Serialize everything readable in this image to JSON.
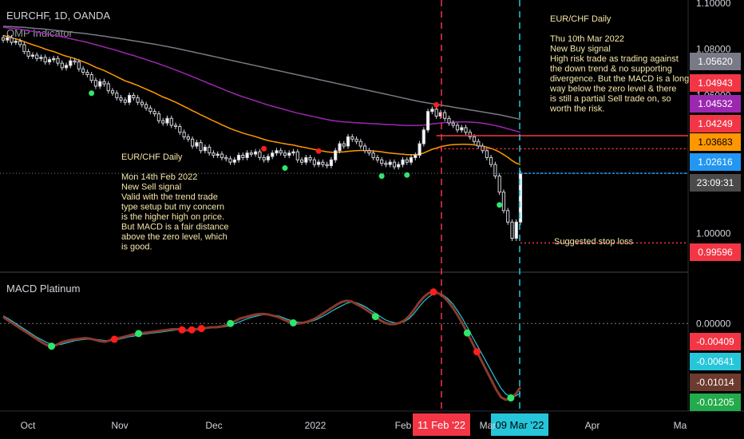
{
  "chart_data": {
    "type": "line",
    "title": "EURCHF, 1D, OANDA",
    "indicator_label": "OMP Indicator",
    "price_axis": {
      "ylim": [
        0.985,
        1.1
      ],
      "ticks": [
        "1.10000",
        "1.08000",
        "1.06000",
        "1.04000",
        "1.02000",
        "1.00000"
      ],
      "tick_values": [
        1.1,
        1.08,
        1.06,
        1.04,
        1.02,
        1.0
      ]
    },
    "time_axis": {
      "labels": [
        "Oct",
        "Nov",
        "Dec",
        "2022",
        "Feb",
        "Mar",
        "Apr",
        "Ma"
      ]
    },
    "price_tags": [
      {
        "value": "1.05620",
        "color": "#787b86"
      },
      {
        "value": "1.04943",
        "color": "#f23645"
      },
      {
        "value": "1.04532",
        "color": "#9c27b0"
      },
      {
        "value": "1.04249",
        "color": "#f23645"
      },
      {
        "value": "1.03683",
        "color": "#ff9800"
      },
      {
        "value": "1.02616",
        "color": "#2196f3"
      },
      {
        "value": "23:09:31",
        "color": "#4a4a4a"
      },
      {
        "value": "0.99596",
        "color": "#f23645"
      }
    ],
    "macd": {
      "label": "MACD Platinum",
      "ylim": [
        -0.0135,
        0.0075
      ],
      "zero_tick": "0.00000",
      "tags": [
        {
          "value": "-0.00409",
          "color": "#f23645"
        },
        {
          "value": "-0.00641",
          "color": "#26c6da"
        },
        {
          "value": "-0.01014",
          "color": "#6d3a2f"
        },
        {
          "value": "-0.01205",
          "color": "#22ab4a"
        }
      ]
    },
    "vertical_markers": [
      {
        "label": "11 Feb '22",
        "color": "#f23645"
      },
      {
        "label": "09 Mar '22",
        "color": "#26c6da"
      }
    ],
    "annotations": {
      "sell_note": [
        "EUR/CHF Daily",
        "",
        "Mon 14th Feb 2022",
        "New Sell signal",
        "Valid with the trend trade",
        "type setup but my concern",
        "is the higher high on price.",
        "But MACD is a fair distance",
        "above the zero level, which",
        "is good."
      ],
      "buy_note": [
        "EUR/CHF Daily",
        "",
        "Thu 10th Mar 2022",
        "New Buy signal",
        "High risk trade as trading against",
        "the down trend & no supporting",
        "divergence.  But the MACD is a long",
        "way below the zero level & there",
        "is still a partial Sell trade on, so",
        "worth the risk."
      ],
      "stop_loss": "Suggested stop loss"
    },
    "levels": {
      "entry": 1.04249,
      "target": 1.03683,
      "current": 1.02616,
      "stop": 0.99596
    },
    "closes": [
      1.084,
      1.085,
      1.083,
      1.0835,
      1.082,
      1.079,
      1.077,
      1.0775,
      1.076,
      1.0765,
      1.0745,
      1.0755,
      1.076,
      1.074,
      1.072,
      1.073,
      1.075,
      1.0745,
      1.0715,
      1.07,
      1.069,
      1.0665,
      1.064,
      1.066,
      1.065,
      1.062,
      1.061,
      1.059,
      1.058,
      1.057,
      1.06,
      1.059,
      1.057,
      1.056,
      1.0545,
      1.053,
      1.052,
      1.049,
      1.048,
      1.05,
      1.047,
      1.0465,
      1.044,
      1.042,
      1.041,
      1.038,
      1.0395,
      1.036,
      1.0375,
      1.035,
      1.034,
      1.0345,
      1.033,
      1.0325,
      1.031,
      1.032,
      1.034,
      1.033,
      1.035,
      1.0345,
      1.0355,
      1.033,
      1.032,
      1.0335,
      1.035,
      1.036,
      1.035,
      1.034,
      1.035,
      1.0355,
      1.032,
      1.031,
      1.033,
      1.032,
      1.03,
      1.031,
      1.03,
      1.0295,
      1.032,
      1.036,
      1.039,
      1.038,
      1.042,
      1.041,
      1.04,
      1.038,
      1.036,
      1.035,
      1.033,
      1.032,
      1.0305,
      1.03,
      1.031,
      1.029,
      1.03,
      1.032,
      1.031,
      1.033,
      1.034,
      1.039,
      1.045,
      1.053,
      1.054,
      1.051,
      1.0525,
      1.05,
      1.048,
      1.047,
      1.045,
      1.046,
      1.044,
      1.042,
      1.04,
      1.038,
      1.036,
      1.033,
      1.03,
      1.025,
      1.018,
      1.01,
      1.005,
      0.998,
      1.005,
      1.0262
    ],
    "ema_fast": [
      1.086,
      1.0855,
      1.085,
      1.0845,
      1.084,
      1.0833,
      1.0826,
      1.082,
      1.0814,
      1.0808,
      1.0801,
      1.0795,
      1.079,
      1.0783,
      1.0776,
      1.077,
      1.0765,
      1.076,
      1.0753,
      1.0746,
      1.0739,
      1.0731,
      1.0722,
      1.0715,
      1.0708,
      1.0699,
      1.069,
      1.0681,
      1.0672,
      1.0663,
      1.0657,
      1.065,
      1.0643,
      1.0635,
      1.0627,
      1.0619,
      1.0611,
      1.0602,
      1.0593,
      1.0586,
      1.0578,
      1.057,
      1.0561,
      1.0552,
      1.0543,
      1.0533,
      1.0525,
      1.0515,
      1.0507,
      1.0498,
      1.0489,
      1.0481,
      1.0472,
      1.0464,
      1.0456,
      1.0449,
      1.0443,
      1.0436,
      1.0431,
      1.0426,
      1.0421,
      1.0415,
      1.0409,
      1.0404,
      1.04,
      1.0397,
      1.0393,
      1.039,
      1.0387,
      1.0384,
      1.038,
      1.0376,
      1.0373,
      1.0369,
      1.0365,
      1.0362,
      1.0358,
      1.0355,
      1.0353,
      1.0353,
      1.0354,
      1.0355,
      1.0357,
      1.0359,
      1.036,
      1.0361,
      1.0361,
      1.036,
      1.0359,
      1.0357,
      1.0355,
      1.0352,
      1.035,
      1.0348,
      1.0346,
      1.0345,
      1.0343,
      1.0343,
      1.0343,
      1.0345,
      1.035,
      1.0358,
      1.0366,
      1.0371,
      1.0377,
      1.0381,
      1.0384,
      1.0386,
      1.0387,
      1.0388,
      1.0388,
      1.0387,
      1.0385,
      1.0382,
      1.0379,
      1.0375,
      1.037,
      1.0363,
      1.0354,
      1.0343,
      1.0331,
      1.0317,
      1.0306,
      1.03
    ],
    "ema_mid": [
      1.0895,
      1.0893,
      1.0891,
      1.0889,
      1.0887,
      1.0884,
      1.0881,
      1.0878,
      1.0875,
      1.0872,
      1.0868,
      1.0865,
      1.0861,
      1.0858,
      1.0854,
      1.085,
      1.0846,
      1.0842,
      1.0838,
      1.0834,
      1.083,
      1.0825,
      1.082,
      1.0815,
      1.081,
      1.0805,
      1.08,
      1.0795,
      1.0789,
      1.0783,
      1.0778,
      1.0773,
      1.0767,
      1.0761,
      1.0755,
      1.0749,
      1.0743,
      1.0737,
      1.073,
      1.0724,
      1.0717,
      1.071,
      1.0703,
      1.0696,
      1.0689,
      1.0681,
      1.0674,
      1.0666,
      1.0659,
      1.0651,
      1.0644,
      1.0636,
      1.0629,
      1.0621,
      1.0614,
      1.0607,
      1.06,
      1.0594,
      1.0588,
      1.0582,
      1.0576,
      1.057,
      1.0564,
      1.0558,
      1.0553,
      1.0548,
      1.0543,
      1.0538,
      1.0533,
      1.0528,
      1.0523,
      1.0519,
      1.0515,
      1.0511,
      1.0507,
      1.0503,
      1.0499,
      1.0495,
      1.0492,
      1.0489,
      1.0487,
      1.0485,
      1.0484,
      1.0482,
      1.0481,
      1.048,
      1.0479,
      1.0478,
      1.0477,
      1.0476,
      1.0475,
      1.0474,
      1.0473,
      1.0472,
      1.0471,
      1.047,
      1.0469,
      1.0469,
      1.0469,
      1.047,
      1.0471,
      1.0473,
      1.0476,
      1.0478,
      1.048,
      1.0482,
      1.0483,
      1.0484,
      1.0485,
      1.0485,
      1.0485,
      1.0484,
      1.0483,
      1.0481,
      1.0479,
      1.0476,
      1.0473,
      1.0469,
      1.0465,
      1.046,
      1.0455,
      1.045,
      1.0445,
      1.044
    ],
    "ema_slow": [
      1.09,
      1.0899,
      1.0898,
      1.0897,
      1.0896,
      1.0895,
      1.0893,
      1.0892,
      1.089,
      1.0889,
      1.0887,
      1.0885,
      1.0883,
      1.0881,
      1.0879,
      1.0877,
      1.0875,
      1.0873,
      1.0871,
      1.0869,
      1.0867,
      1.0864,
      1.0862,
      1.0859,
      1.0857,
      1.0854,
      1.0851,
      1.0849,
      1.0846,
      1.0843,
      1.084,
      1.0837,
      1.0834,
      1.0831,
      1.0828,
      1.0825,
      1.0822,
      1.0819,
      1.0815,
      1.0812,
      1.0808,
      1.0805,
      1.0801,
      1.0797,
      1.0793,
      1.0789,
      1.0785,
      1.0781,
      1.0777,
      1.0773,
      1.0769,
      1.0765,
      1.0761,
      1.0757,
      1.0753,
      1.0749,
      1.0745,
      1.0741,
      1.0737,
      1.0733,
      1.0729,
      1.0725,
      1.0721,
      1.0717,
      1.0713,
      1.0709,
      1.0705,
      1.0701,
      1.0697,
      1.0693,
      1.0689,
      1.0685,
      1.0681,
      1.0677,
      1.0673,
      1.0669,
      1.0665,
      1.0661,
      1.0657,
      1.0653,
      1.0649,
      1.0645,
      1.0641,
      1.0637,
      1.0633,
      1.0629,
      1.0625,
      1.0621,
      1.0617,
      1.0613,
      1.0609,
      1.0605,
      1.0601,
      1.0597,
      1.0593,
      1.0589,
      1.0585,
      1.0581,
      1.0577,
      1.0573,
      1.057,
      1.0567,
      1.0564,
      1.0561,
      1.0558,
      1.0555,
      1.0552,
      1.0549,
      1.0546,
      1.0543,
      1.054,
      1.0537,
      1.0534,
      1.0531,
      1.0528,
      1.0525,
      1.0522,
      1.0519,
      1.0516,
      1.0512,
      1.0508,
      1.0504,
      1.05,
      1.0496
    ],
    "macd_line": [
      0.001,
      0.0005,
      0.0,
      -0.0005,
      -0.001,
      -0.0015,
      -0.002,
      -0.0025,
      -0.003,
      -0.0034,
      -0.0036,
      -0.0034,
      -0.003,
      -0.0028,
      -0.0026,
      -0.0025,
      -0.0024,
      -0.0023,
      -0.0024,
      -0.0026,
      -0.0028,
      -0.0029,
      -0.0027,
      -0.0025,
      -0.0023,
      -0.0021,
      -0.0019,
      -0.0017,
      -0.0016,
      -0.0015,
      -0.0014,
      -0.0013,
      -0.0012,
      -0.0011,
      -0.001,
      -0.0009,
      -0.0009,
      -0.001,
      -0.0011,
      -0.001,
      -0.0009,
      -0.0008,
      -0.0007,
      -0.0006,
      -0.0006,
      -0.0005,
      -0.0003,
      0.0,
      0.0004,
      0.0008,
      0.001,
      0.0012,
      0.0014,
      0.0015,
      0.0015,
      0.0014,
      0.0012,
      0.001,
      0.0006,
      0.0003,
      0.0001,
      0.0,
      0.0001,
      0.0003,
      0.0006,
      0.001,
      0.0015,
      0.002,
      0.0025,
      0.003,
      0.0034,
      0.0036,
      0.0035,
      0.0031,
      0.0027,
      0.0022,
      0.0017,
      0.0011,
      0.0005,
      0.0001,
      -0.0001,
      -0.0001,
      0.0001,
      0.0005,
      0.0012,
      0.0022,
      0.0033,
      0.0042,
      0.0048,
      0.005,
      0.0048,
      0.0043,
      0.0035,
      0.0025,
      0.0013,
      0.0,
      -0.0015,
      -0.003,
      -0.0045,
      -0.006,
      -0.0075,
      -0.009,
      -0.0105,
      -0.0117,
      -0.0121,
      -0.0118,
      -0.0112,
      -0.0101
    ],
    "signal_line": [
      0.0012,
      0.0008,
      0.0003,
      -0.0002,
      -0.0007,
      -0.0012,
      -0.0017,
      -0.0022,
      -0.0026,
      -0.003,
      -0.0033,
      -0.0034,
      -0.0033,
      -0.0031,
      -0.0029,
      -0.0027,
      -0.0026,
      -0.0025,
      -0.0025,
      -0.0025,
      -0.0026,
      -0.0027,
      -0.0027,
      -0.0026,
      -0.0025,
      -0.0023,
      -0.0021,
      -0.002,
      -0.0018,
      -0.0017,
      -0.0016,
      -0.0015,
      -0.0014,
      -0.0013,
      -0.0012,
      -0.0011,
      -0.001,
      -0.001,
      -0.001,
      -0.001,
      -0.001,
      -0.0009,
      -0.0008,
      -0.0007,
      -0.0007,
      -0.0006,
      -0.0005,
      -0.0003,
      0.0,
      0.0003,
      0.0006,
      0.0009,
      0.0011,
      0.0013,
      0.0014,
      0.0014,
      0.0013,
      0.0012,
      0.0009,
      0.0006,
      0.0004,
      0.0002,
      0.0002,
      0.0002,
      0.0004,
      0.0007,
      0.0011,
      0.0015,
      0.002,
      0.0024,
      0.0028,
      0.0032,
      0.0034,
      0.0033,
      0.003,
      0.0026,
      0.0021,
      0.0016,
      0.0011,
      0.0006,
      0.0003,
      0.0001,
      0.0001,
      0.0003,
      0.0008,
      0.0016,
      0.0026,
      0.0035,
      0.0042,
      0.0047,
      0.0048,
      0.0045,
      0.0039,
      0.0031,
      0.002,
      0.0008,
      -0.0006,
      -0.002,
      -0.0034,
      -0.0048,
      -0.0062,
      -0.0076,
      -0.009,
      -0.0103,
      -0.0112,
      -0.0116,
      -0.0115,
      -0.011
    ]
  }
}
